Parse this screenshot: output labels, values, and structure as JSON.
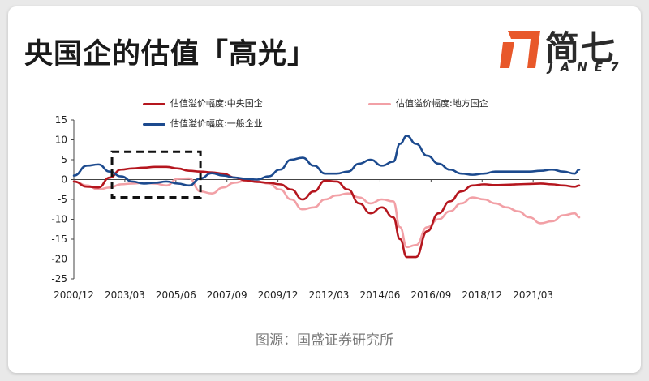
{
  "header": {
    "title": "央国企的估值「高光」",
    "logo_cn": "简七",
    "logo_en": "JANE7",
    "logo_color": "#e8582a"
  },
  "footer": {
    "source": "图源：国盛证券研究所"
  },
  "chart_data": {
    "type": "line",
    "title": "",
    "xlabel": "",
    "ylabel": "",
    "ylim": [
      -25,
      15
    ],
    "yticks": [
      15,
      10,
      5,
      0,
      -5,
      -10,
      -15,
      -20,
      -25
    ],
    "xtick_labels": [
      "2000/12",
      "2003/03",
      "2005/06",
      "2007/09",
      "2009/12",
      "2012/03",
      "2014/06",
      "2016/09",
      "2018/12",
      "2021/03"
    ],
    "xtick_values": [
      2000.917,
      2003.167,
      2005.417,
      2007.667,
      2009.917,
      2012.167,
      2014.417,
      2016.667,
      2018.917,
      2021.167
    ],
    "xlim": [
      2000.917,
      2023.2
    ],
    "legend_position": "top",
    "annotation": "dashed box highlighting 2002–2006",
    "annotation_range_x": [
      2002.6,
      2006.5
    ],
    "annotation_range_y": [
      -4.5,
      7
    ],
    "series": [
      {
        "name": "估值溢价幅度:中央国企",
        "color": "#b5161e",
        "x": [
          2000.92,
          2001.5,
          2002.0,
          2002.5,
          2003.0,
          2003.5,
          2004.0,
          2004.5,
          2005.0,
          2005.5,
          2006.0,
          2006.5,
          2007.0,
          2007.5,
          2008.0,
          2008.5,
          2009.0,
          2009.5,
          2010.0,
          2010.5,
          2011.0,
          2011.5,
          2012.0,
          2012.5,
          2013.0,
          2013.5,
          2014.0,
          2014.5,
          2015.0,
          2015.3,
          2015.6,
          2016.0,
          2016.5,
          2017.0,
          2017.5,
          2018.0,
          2018.5,
          2019.0,
          2019.5,
          2020.0,
          2020.5,
          2021.0,
          2021.5,
          2022.0,
          2022.5,
          2023.0,
          2023.2
        ],
        "y": [
          -0.5,
          -1.8,
          -2.0,
          0.5,
          2.5,
          2.8,
          3.0,
          3.2,
          3.2,
          2.8,
          2.2,
          2.0,
          1.8,
          1.5,
          0.5,
          -0.2,
          -0.6,
          -0.8,
          -1.2,
          -2.5,
          -5.0,
          -3.0,
          -0.3,
          -0.5,
          -2.5,
          -6.0,
          -8.5,
          -7.0,
          -9.5,
          -15.0,
          -19.5,
          -19.5,
          -13.0,
          -8.5,
          -5.5,
          -3.0,
          -1.5,
          -1.2,
          -1.4,
          -1.3,
          -1.2,
          -1.1,
          -1.0,
          -1.2,
          -1.5,
          -1.8,
          -1.5
        ]
      },
      {
        "name": "估值溢价幅度:地方国企",
        "color": "#f2a0a6",
        "x": [
          2000.92,
          2001.5,
          2002.0,
          2002.5,
          2003.0,
          2003.5,
          2004.0,
          2004.5,
          2005.0,
          2005.5,
          2006.0,
          2006.5,
          2007.0,
          2007.5,
          2008.0,
          2008.5,
          2009.0,
          2009.5,
          2010.0,
          2010.5,
          2011.0,
          2011.5,
          2012.0,
          2012.5,
          2013.0,
          2013.5,
          2014.0,
          2014.5,
          2015.0,
          2015.3,
          2015.6,
          2016.0,
          2016.5,
          2017.0,
          2017.5,
          2018.0,
          2018.5,
          2019.0,
          2019.5,
          2020.0,
          2020.5,
          2021.0,
          2021.5,
          2022.0,
          2022.5,
          2023.0,
          2023.2
        ],
        "y": [
          -0.5,
          -1.5,
          -2.5,
          -2.0,
          -1.2,
          -1.0,
          -0.8,
          -1.0,
          -1.5,
          0.2,
          0.3,
          -3.0,
          -3.5,
          -2.0,
          -0.8,
          -0.3,
          -0.5,
          -1.0,
          -2.5,
          -5.0,
          -7.5,
          -7.0,
          -5.0,
          -4.0,
          -3.5,
          -4.5,
          -6.0,
          -5.0,
          -5.5,
          -12.0,
          -17.0,
          -16.5,
          -12.0,
          -10.0,
          -8.0,
          -6.0,
          -4.5,
          -5.0,
          -6.0,
          -7.0,
          -8.0,
          -9.5,
          -11.0,
          -10.5,
          -9.0,
          -8.5,
          -9.5
        ]
      },
      {
        "name": "估值溢价幅度:一般企业",
        "color": "#1c4a8e",
        "x": [
          2000.92,
          2001.5,
          2002.0,
          2002.5,
          2003.0,
          2003.5,
          2004.0,
          2004.5,
          2005.0,
          2005.5,
          2006.0,
          2006.5,
          2007.0,
          2007.5,
          2008.0,
          2008.5,
          2009.0,
          2009.5,
          2010.0,
          2010.5,
          2011.0,
          2011.5,
          2012.0,
          2012.5,
          2013.0,
          2013.5,
          2014.0,
          2014.5,
          2015.0,
          2015.3,
          2015.6,
          2016.0,
          2016.5,
          2017.0,
          2017.5,
          2018.0,
          2018.5,
          2019.0,
          2019.5,
          2020.0,
          2020.5,
          2021.0,
          2021.5,
          2022.0,
          2022.5,
          2023.0,
          2023.2
        ],
        "y": [
          1.0,
          3.5,
          3.8,
          2.0,
          0.8,
          -0.5,
          -1.0,
          -0.8,
          -0.5,
          -1.0,
          -1.5,
          0.3,
          1.6,
          1.0,
          0.5,
          0.2,
          0.0,
          0.8,
          2.5,
          5.0,
          5.5,
          3.5,
          1.5,
          1.5,
          2.0,
          4.0,
          5.0,
          3.5,
          4.5,
          9.0,
          11.0,
          9.0,
          6.0,
          4.0,
          2.5,
          1.5,
          1.2,
          1.5,
          2.0,
          2.0,
          2.0,
          2.0,
          2.2,
          2.5,
          2.0,
          1.5,
          2.5
        ]
      }
    ]
  }
}
